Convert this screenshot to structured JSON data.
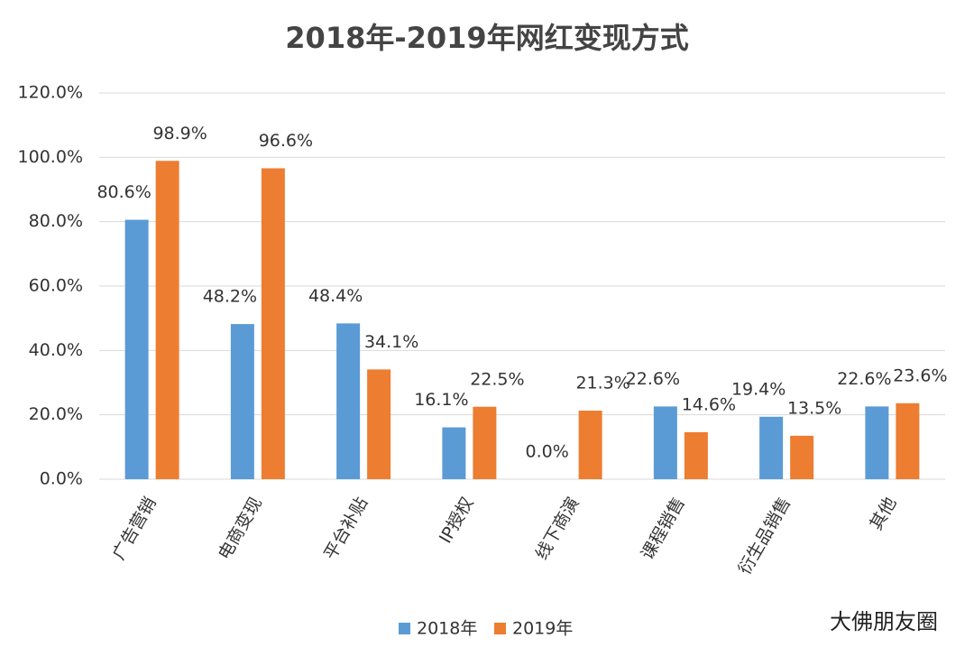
{
  "chart_data": {
    "type": "bar",
    "title": "2018年-2019年网红变现方式",
    "categories": [
      "广告营销",
      "电商变现",
      "平台补贴",
      "IP授权",
      "线下商演",
      "课程销售",
      "衍生品销售",
      "其他"
    ],
    "series": [
      {
        "name": "2018年",
        "color": "#5b9bd5",
        "values": [
          80.6,
          48.2,
          48.4,
          16.1,
          0.0,
          22.6,
          19.4,
          22.6
        ],
        "value_labels": [
          "80.6%",
          "48.2%",
          "48.4%",
          "16.1%",
          "0.0%",
          "22.6%",
          "19.4%",
          "22.6%"
        ]
      },
      {
        "name": "2019年",
        "color": "#ed7d31",
        "values": [
          98.9,
          96.6,
          34.1,
          22.5,
          21.3,
          14.6,
          13.5,
          23.6
        ],
        "value_labels": [
          "98.9%",
          "96.6%",
          "34.1%",
          "22.5%",
          "21.3%",
          "14.6%",
          "13.5%",
          "23.6%"
        ]
      }
    ],
    "ylim": [
      0,
      120
    ],
    "yticks": [
      {
        "value": 0,
        "label": "0.0%"
      },
      {
        "value": 20,
        "label": "20.0%"
      },
      {
        "value": 40,
        "label": "40.0%"
      },
      {
        "value": 60,
        "label": "60.0%"
      },
      {
        "value": 80,
        "label": "80.0%"
      },
      {
        "value": 100,
        "label": "100.0%"
      },
      {
        "value": 120,
        "label": "120.0%"
      }
    ],
    "grid": true,
    "legend": "bottom",
    "watermark": "大佛朋友圈"
  }
}
